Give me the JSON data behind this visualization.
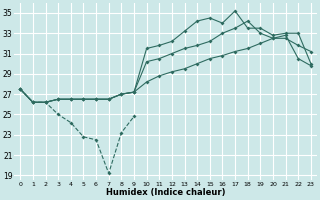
{
  "xlabel": "Humidex (Indice chaleur)",
  "bg_color": "#cde8e8",
  "grid_color": "#ffffff",
  "line_color": "#2e6b60",
  "xlim": [
    -0.5,
    23.5
  ],
  "ylim": [
    18.5,
    36.0
  ],
  "yticks": [
    19,
    21,
    23,
    25,
    27,
    29,
    31,
    33,
    35
  ],
  "xticks": [
    0,
    1,
    2,
    3,
    4,
    5,
    6,
    7,
    8,
    9,
    10,
    11,
    12,
    13,
    14,
    15,
    16,
    17,
    18,
    19,
    20,
    21,
    22,
    23
  ],
  "line_dip_x": [
    0,
    1,
    2,
    3,
    4,
    5,
    6,
    7,
    8,
    9
  ],
  "line_dip_y": [
    27.5,
    26.2,
    26.2,
    25.0,
    24.2,
    22.8,
    22.5,
    19.2,
    23.2,
    24.8
  ],
  "line_top_x": [
    0,
    1,
    2,
    3,
    4,
    5,
    6,
    7,
    8,
    9,
    10,
    11,
    12,
    13,
    14,
    15,
    16,
    17,
    18,
    19,
    20,
    21,
    22,
    23
  ],
  "line_top_y": [
    27.5,
    26.2,
    26.2,
    26.5,
    26.5,
    26.5,
    26.5,
    26.5,
    27.0,
    27.2,
    31.5,
    31.8,
    32.2,
    33.2,
    34.2,
    34.5,
    34.0,
    35.2,
    33.5,
    33.5,
    32.8,
    33.0,
    33.0,
    30.0
  ],
  "line_mid_x": [
    0,
    1,
    2,
    3,
    4,
    5,
    6,
    7,
    8,
    9,
    10,
    11,
    12,
    13,
    14,
    15,
    16,
    17,
    18,
    19,
    20,
    21,
    22,
    23
  ],
  "line_mid_y": [
    27.5,
    26.2,
    26.2,
    26.5,
    26.5,
    26.5,
    26.5,
    26.5,
    27.0,
    27.2,
    30.2,
    30.5,
    31.0,
    31.5,
    31.8,
    32.2,
    33.0,
    33.5,
    34.2,
    33.0,
    32.5,
    32.5,
    31.8,
    31.2
  ],
  "line_low_x": [
    0,
    1,
    2,
    3,
    4,
    5,
    6,
    7,
    8,
    9,
    10,
    11,
    12,
    13,
    14,
    15,
    16,
    17,
    18,
    19,
    20,
    21,
    22,
    23
  ],
  "line_low_y": [
    27.5,
    26.2,
    26.2,
    26.5,
    26.5,
    26.5,
    26.5,
    26.5,
    27.0,
    27.2,
    28.2,
    28.8,
    29.2,
    29.5,
    30.0,
    30.5,
    30.8,
    31.2,
    31.5,
    32.0,
    32.5,
    32.8,
    30.5,
    29.8
  ]
}
